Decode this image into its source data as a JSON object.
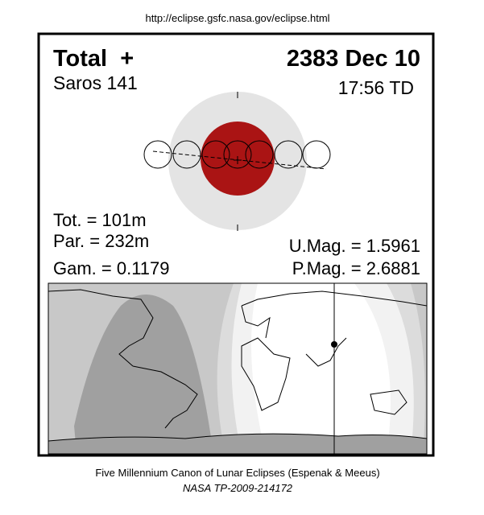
{
  "header": {
    "url": "http://eclipse.gsfc.nasa.gov/eclipse.html"
  },
  "panel": {
    "eclipse_type": "Total  +",
    "saros": "Saros 141",
    "date": "2383 Dec 10",
    "time": "17:56 TD",
    "total_duration": "Tot. = 101m",
    "partial_duration": "Par. = 232m",
    "gamma": "Gam. = 0.1179",
    "umbral_magnitude": "U.Mag. = 1.5961",
    "penumbral_magnitude": "P.Mag. = 2.6881"
  },
  "footer": {
    "caption": "Five Millennium Canon of Lunar Eclipses (Espenak & Meeus)",
    "reference": "NASA TP-2009-214172"
  }
}
